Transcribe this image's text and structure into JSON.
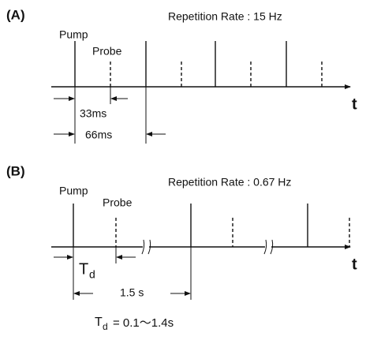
{
  "panel_a": {
    "label": "(A)",
    "rate": "Repetition Rate : 15 Hz",
    "pump": "Pump",
    "probe": "Probe",
    "axis": "t",
    "short_interval": "33ms",
    "long_interval": "66ms"
  },
  "panel_b": {
    "label": "(B)",
    "rate": "Repetition Rate : 0.67 Hz",
    "pump": "Pump",
    "probe": "Probe",
    "axis": "t",
    "delay_symbol": "T",
    "delay_subscript": "d",
    "interval": "1.5 s"
  },
  "formula": {
    "symbol": "T",
    "subscript": "d",
    "text": "= 0.1〜1.4s"
  }
}
